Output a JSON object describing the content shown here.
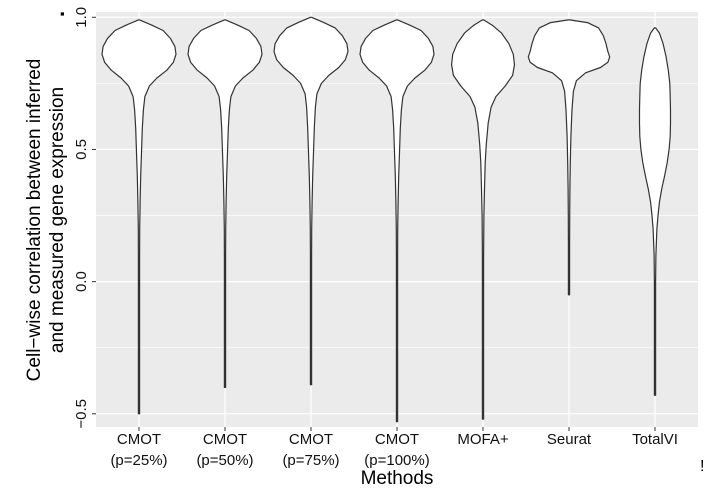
{
  "chart_data": {
    "type": "violin",
    "title": "",
    "xlabel": "Methods",
    "ylabel_line1": "Cell−wise correlation between inferred",
    "ylabel_line2": "and measured gene expression",
    "ylim": [
      -0.55,
      1.02
    ],
    "y_ticks": [
      {
        "value": -0.5,
        "label": "−0.5"
      },
      {
        "value": 0.0,
        "label": "0.0"
      },
      {
        "value": 0.5,
        "label": "0.5"
      },
      {
        "value": 1.0,
        "label": "1.0"
      }
    ],
    "grid": true,
    "legend": "none",
    "colors": {
      "panel": "#ebebeb",
      "grid": "#ffffff",
      "violin_fill": "#ffffff",
      "violin_stroke": "#333333"
    },
    "categories": [
      {
        "line1": "CMOT",
        "line2": "(p=25%)"
      },
      {
        "line1": "CMOT",
        "line2": "(p=50%)"
      },
      {
        "line1": "CMOT",
        "line2": "(p=75%)"
      },
      {
        "line1": "CMOT",
        "line2": "(p=100%)"
      },
      {
        "line1": "MOFA+",
        "line2": ""
      },
      {
        "line1": "Seurat",
        "line2": ""
      },
      {
        "line1": "TotalVI",
        "line2": ""
      }
    ],
    "series": [
      {
        "min": -0.5,
        "max": 0.99,
        "profile": [
          [
            0.99,
            0
          ],
          [
            0.97,
            0.35
          ],
          [
            0.95,
            0.65
          ],
          [
            0.92,
            0.85
          ],
          [
            0.89,
            0.97
          ],
          [
            0.86,
            1.0
          ],
          [
            0.83,
            0.93
          ],
          [
            0.8,
            0.75
          ],
          [
            0.77,
            0.48
          ],
          [
            0.74,
            0.28
          ],
          [
            0.7,
            0.16
          ],
          [
            0.65,
            0.12
          ],
          [
            0.58,
            0.09
          ],
          [
            0.5,
            0.07
          ],
          [
            0.4,
            0.045
          ],
          [
            0.3,
            0.03
          ],
          [
            0.2,
            0.02
          ],
          [
            0.1,
            0.013
          ],
          [
            0.0,
            0.008
          ],
          [
            -0.2,
            0.005
          ],
          [
            -0.4,
            0.004
          ],
          [
            -0.5,
            0
          ]
        ]
      },
      {
        "min": -0.4,
        "max": 0.99,
        "profile": [
          [
            0.99,
            0
          ],
          [
            0.97,
            0.35
          ],
          [
            0.95,
            0.65
          ],
          [
            0.92,
            0.85
          ],
          [
            0.89,
            0.97
          ],
          [
            0.86,
            1.0
          ],
          [
            0.83,
            0.93
          ],
          [
            0.8,
            0.75
          ],
          [
            0.77,
            0.48
          ],
          [
            0.74,
            0.28
          ],
          [
            0.7,
            0.16
          ],
          [
            0.65,
            0.12
          ],
          [
            0.58,
            0.09
          ],
          [
            0.5,
            0.07
          ],
          [
            0.4,
            0.045
          ],
          [
            0.3,
            0.03
          ],
          [
            0.2,
            0.02
          ],
          [
            0.1,
            0.013
          ],
          [
            0.0,
            0.008
          ],
          [
            -0.2,
            0.005
          ],
          [
            -0.3,
            0.004
          ],
          [
            -0.4,
            0
          ]
        ]
      },
      {
        "min": -0.39,
        "max": 1.0,
        "profile": [
          [
            1.0,
            0
          ],
          [
            0.98,
            0.35
          ],
          [
            0.96,
            0.65
          ],
          [
            0.93,
            0.85
          ],
          [
            0.9,
            0.97
          ],
          [
            0.87,
            1.0
          ],
          [
            0.84,
            0.93
          ],
          [
            0.81,
            0.75
          ],
          [
            0.78,
            0.48
          ],
          [
            0.75,
            0.28
          ],
          [
            0.71,
            0.16
          ],
          [
            0.66,
            0.12
          ],
          [
            0.58,
            0.09
          ],
          [
            0.5,
            0.07
          ],
          [
            0.4,
            0.045
          ],
          [
            0.3,
            0.03
          ],
          [
            0.2,
            0.02
          ],
          [
            0.1,
            0.013
          ],
          [
            0.0,
            0.008
          ],
          [
            -0.2,
            0.005
          ],
          [
            -0.3,
            0.004
          ],
          [
            -0.39,
            0
          ]
        ]
      },
      {
        "min": -0.53,
        "max": 0.99,
        "profile": [
          [
            0.99,
            0
          ],
          [
            0.97,
            0.35
          ],
          [
            0.95,
            0.65
          ],
          [
            0.92,
            0.85
          ],
          [
            0.89,
            0.97
          ],
          [
            0.86,
            1.0
          ],
          [
            0.83,
            0.93
          ],
          [
            0.8,
            0.75
          ],
          [
            0.77,
            0.48
          ],
          [
            0.74,
            0.28
          ],
          [
            0.7,
            0.16
          ],
          [
            0.65,
            0.12
          ],
          [
            0.58,
            0.09
          ],
          [
            0.5,
            0.07
          ],
          [
            0.4,
            0.045
          ],
          [
            0.3,
            0.03
          ],
          [
            0.2,
            0.02
          ],
          [
            0.1,
            0.013
          ],
          [
            0.0,
            0.008
          ],
          [
            -0.2,
            0.005
          ],
          [
            -0.4,
            0.004
          ],
          [
            -0.53,
            0
          ]
        ]
      },
      {
        "min": -0.52,
        "max": 0.99,
        "profile": [
          [
            0.99,
            0
          ],
          [
            0.97,
            0.25
          ],
          [
            0.94,
            0.5
          ],
          [
            0.9,
            0.7
          ],
          [
            0.86,
            0.82
          ],
          [
            0.82,
            0.85
          ],
          [
            0.78,
            0.8
          ],
          [
            0.74,
            0.6
          ],
          [
            0.7,
            0.35
          ],
          [
            0.66,
            0.22
          ],
          [
            0.6,
            0.14
          ],
          [
            0.52,
            0.09
          ],
          [
            0.45,
            0.06
          ],
          [
            0.35,
            0.04
          ],
          [
            0.25,
            0.025
          ],
          [
            0.1,
            0.015
          ],
          [
            0.0,
            0.01
          ],
          [
            -0.2,
            0.006
          ],
          [
            -0.4,
            0.004
          ],
          [
            -0.52,
            0
          ]
        ]
      },
      {
        "min": -0.05,
        "max": 0.99,
        "profile": [
          [
            0.99,
            0
          ],
          [
            0.98,
            0.5
          ],
          [
            0.96,
            0.8
          ],
          [
            0.93,
            0.93
          ],
          [
            0.9,
            1.0
          ],
          [
            0.87,
            1.05
          ],
          [
            0.85,
            1.1
          ],
          [
            0.83,
            1.05
          ],
          [
            0.81,
            0.85
          ],
          [
            0.79,
            0.45
          ],
          [
            0.76,
            0.2
          ],
          [
            0.72,
            0.12
          ],
          [
            0.65,
            0.08
          ],
          [
            0.55,
            0.05
          ],
          [
            0.45,
            0.035
          ],
          [
            0.35,
            0.025
          ],
          [
            0.25,
            0.018
          ],
          [
            0.15,
            0.012
          ],
          [
            0.05,
            0.008
          ],
          [
            -0.05,
            0
          ]
        ]
      },
      {
        "min": -0.43,
        "max": 0.96,
        "profile": [
          [
            0.96,
            0
          ],
          [
            0.94,
            0.12
          ],
          [
            0.9,
            0.22
          ],
          [
            0.85,
            0.3
          ],
          [
            0.8,
            0.36
          ],
          [
            0.75,
            0.4
          ],
          [
            0.7,
            0.41
          ],
          [
            0.65,
            0.42
          ],
          [
            0.6,
            0.42
          ],
          [
            0.55,
            0.41
          ],
          [
            0.5,
            0.38
          ],
          [
            0.45,
            0.33
          ],
          [
            0.4,
            0.26
          ],
          [
            0.35,
            0.18
          ],
          [
            0.3,
            0.12
          ],
          [
            0.25,
            0.08
          ],
          [
            0.2,
            0.05
          ],
          [
            0.1,
            0.025
          ],
          [
            0.0,
            0.012
          ],
          [
            -0.2,
            0.006
          ],
          [
            -0.35,
            0.004
          ],
          [
            -0.43,
            0
          ]
        ]
      }
    ]
  },
  "corner_marks": {
    "top_right": "▪",
    "bottom_right": "!"
  }
}
